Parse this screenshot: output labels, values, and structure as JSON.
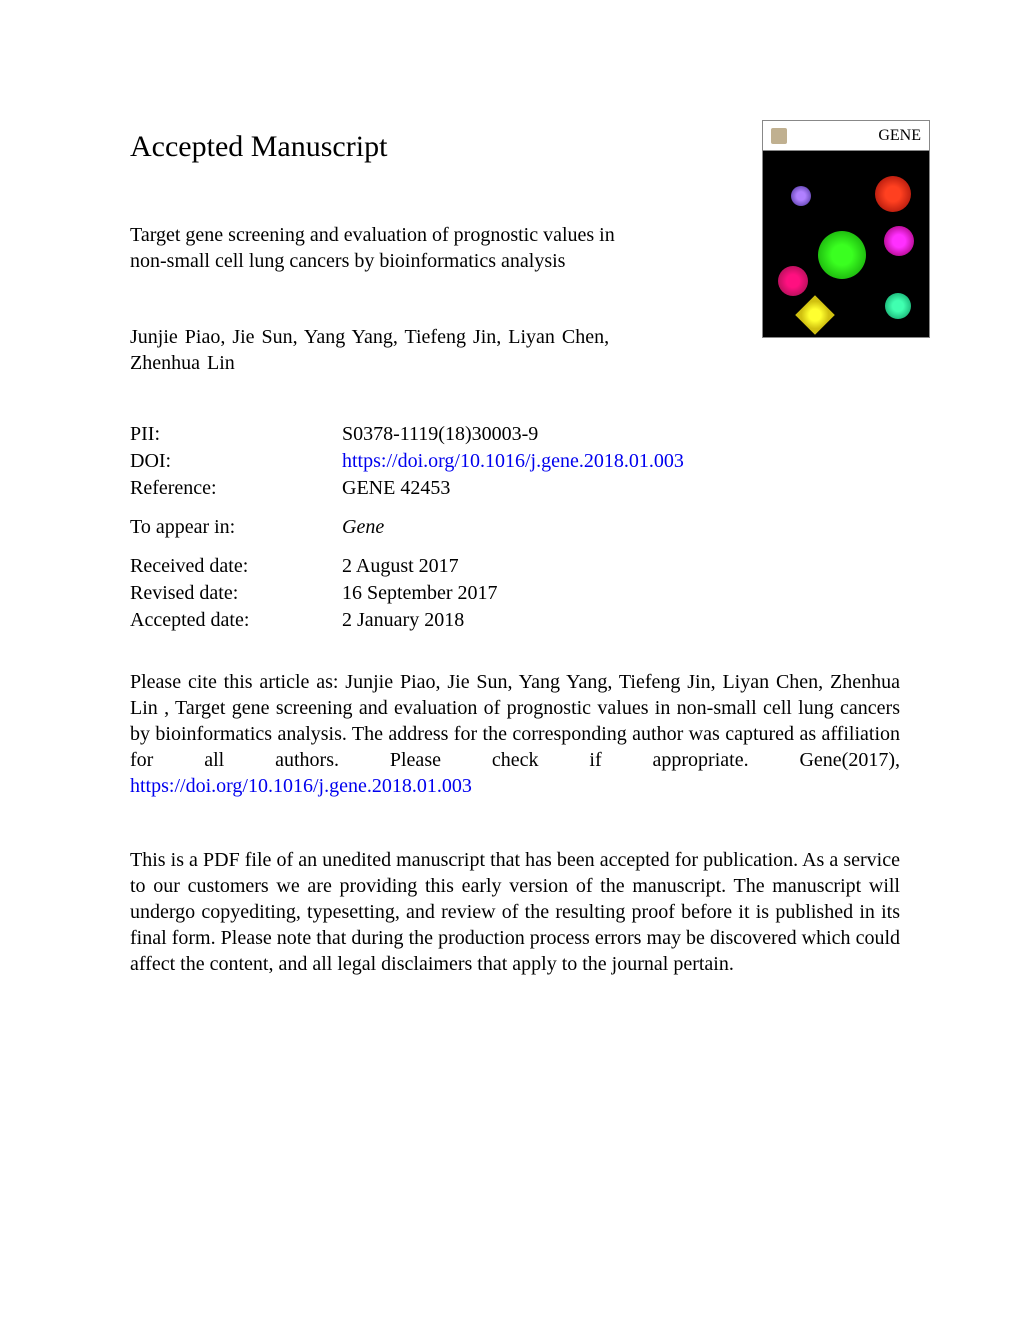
{
  "heading": "Accepted Manuscript",
  "journal_cover": {
    "journal_name": "GENE",
    "background_color": "#000000",
    "header_bg": "#ffffff",
    "flowers": {
      "green_large": "#3aff20",
      "red": "#ff4020",
      "pink": "#ff30ff",
      "magenta": "#ff1080",
      "yellow": "#ffff30",
      "purple": "#b080ff",
      "teal": "#40ffb0"
    }
  },
  "title": "Target gene screening and evaluation of prognostic values in non-small cell lung cancers by bioinformatics analysis",
  "authors": "Junjie Piao, Jie Sun, Yang Yang, Tiefeng Jin, Liyan Chen, Zhenhua Lin",
  "metadata": {
    "pii_label": "PII:",
    "pii_value": "S0378-1119(18)30003-9",
    "doi_label": "DOI:",
    "doi_value": "https://doi.org/10.1016/j.gene.2018.01.003",
    "reference_label": "Reference:",
    "reference_value": "GENE 42453",
    "appear_label": "To appear in:",
    "appear_value": "Gene",
    "received_label": "Received date:",
    "received_value": "2 August 2017",
    "revised_label": "Revised date:",
    "revised_value": "16 September 2017",
    "accepted_label": "Accepted date:",
    "accepted_value": "2 January 2018"
  },
  "citation": {
    "text_before_link": "Please cite this article as: Junjie Piao, Jie Sun, Yang Yang, Tiefeng Jin, Liyan Chen, Zhenhua Lin , Target gene screening and evaluation of prognostic values in non-small cell lung cancers by bioinformatics analysis. The address for the corresponding author was captured as affiliation for all authors. Please check if appropriate. Gene(2017), ",
    "link": "https://doi.org/10.1016/j.gene.2018.01.003"
  },
  "disclaimer": "This is a PDF file of an unedited manuscript that has been accepted for publication. As a service to our customers we are providing this early version of the manuscript. The manuscript will undergo copyediting, typesetting, and review of the resulting proof before it is published in its final form. Please note that during the production process errors may be discovered which could affect the content, and all legal disclaimers that apply to the journal pertain.",
  "colors": {
    "text": "#000000",
    "link": "#0000ee",
    "background": "#ffffff"
  },
  "typography": {
    "heading_fontsize": 30,
    "body_fontsize": 20,
    "font_family": "Times New Roman"
  }
}
